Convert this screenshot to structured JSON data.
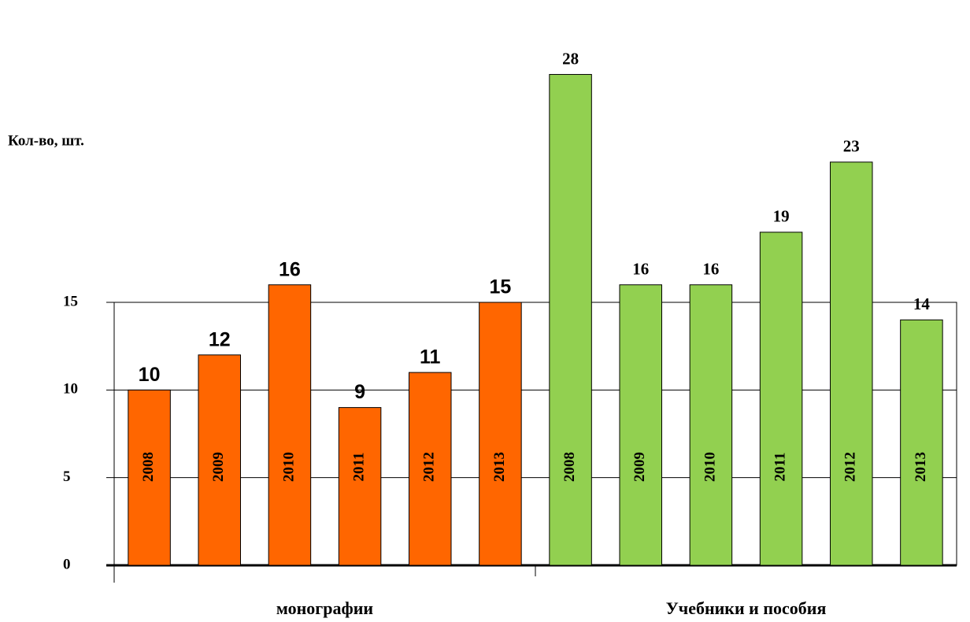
{
  "chart_data": {
    "type": "bar",
    "ylabel": "Кол-во, шт.",
    "ylim": [
      0,
      30
    ],
    "yticks": [
      0,
      5,
      10,
      15
    ],
    "grid": true,
    "series": [
      {
        "name": "монографии",
        "color": "#ff6600",
        "categories": [
          "2008",
          "2009",
          "2010",
          "2011",
          "2012",
          "2013"
        ],
        "values": [
          10,
          12,
          16,
          9,
          11,
          15
        ]
      },
      {
        "name": "Учебники и пособия",
        "color": "#92d050",
        "categories": [
          "2008",
          "2009",
          "2010",
          "2011",
          "2012",
          "2013"
        ],
        "values": [
          28,
          16,
          16,
          19,
          23,
          14
        ]
      }
    ]
  }
}
